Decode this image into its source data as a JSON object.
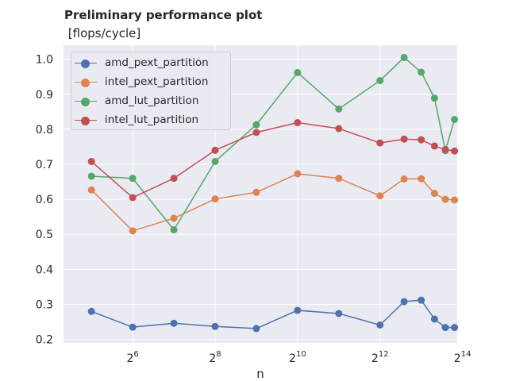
{
  "chart_data": {
    "type": "line",
    "title": "Preliminary performance plot",
    "subtitle": " [flops/cycle]",
    "xlabel": "n",
    "ylabel": "",
    "x_scale": "log2",
    "x": [
      16,
      64,
      256,
      1024,
      4096,
      16384
    ],
    "x_ticks": [
      64,
      256,
      1024,
      4096,
      16384
    ],
    "x_tick_labels": [
      {
        "base": "2",
        "exp": "6"
      },
      {
        "base": "2",
        "exp": "8"
      },
      {
        "base": "2",
        "exp": "10"
      },
      {
        "base": "2",
        "exp": "12"
      },
      {
        "base": "2",
        "exp": "14"
      }
    ],
    "xlim": [
      20,
      15000
    ],
    "ylim": [
      0.19,
      1.04
    ],
    "y_ticks": [
      0.2,
      0.3,
      0.4,
      0.5,
      0.6,
      0.7,
      0.8,
      0.9,
      1.0
    ],
    "y_tick_labels": [
      "0.2",
      "0.3",
      "0.4",
      "0.5",
      "0.6",
      "0.7",
      "0.8",
      "0.9",
      "1.0"
    ],
    "grid": true,
    "legend_position": "top-left",
    "x_values": [
      32,
      64,
      128,
      256,
      512,
      1024,
      2048,
      4096,
      6144,
      8192,
      10240,
      12288,
      14336
    ],
    "series": [
      {
        "name": "amd_pext_partition",
        "color": "#4c72b0",
        "values": [
          0.28,
          0.235,
          0.246,
          0.237,
          0.231,
          0.283,
          0.274,
          0.241,
          0.308,
          0.312,
          0.258,
          0.234,
          0.234
        ]
      },
      {
        "name": "intel_pext_partition",
        "color": "#dd8452",
        "values": [
          0.627,
          0.51,
          0.546,
          0.601,
          0.62,
          0.673,
          0.66,
          0.61,
          0.658,
          0.659,
          0.617,
          0.6,
          0.598
        ]
      },
      {
        "name": "amd_lut_partition",
        "color": "#55a868",
        "values": [
          0.666,
          0.66,
          0.513,
          0.708,
          0.813,
          0.962,
          0.858,
          0.939,
          1.005,
          0.963,
          0.889,
          0.739,
          0.828
        ]
      },
      {
        "name": "intel_lut_partition",
        "color": "#c44e52",
        "values": [
          0.708,
          0.605,
          0.66,
          0.74,
          0.791,
          0.819,
          0.802,
          0.761,
          0.772,
          0.77,
          0.752,
          0.742,
          0.738
        ]
      }
    ],
    "background_color": "#eaeaf2",
    "grid_color": "#ffffff"
  }
}
